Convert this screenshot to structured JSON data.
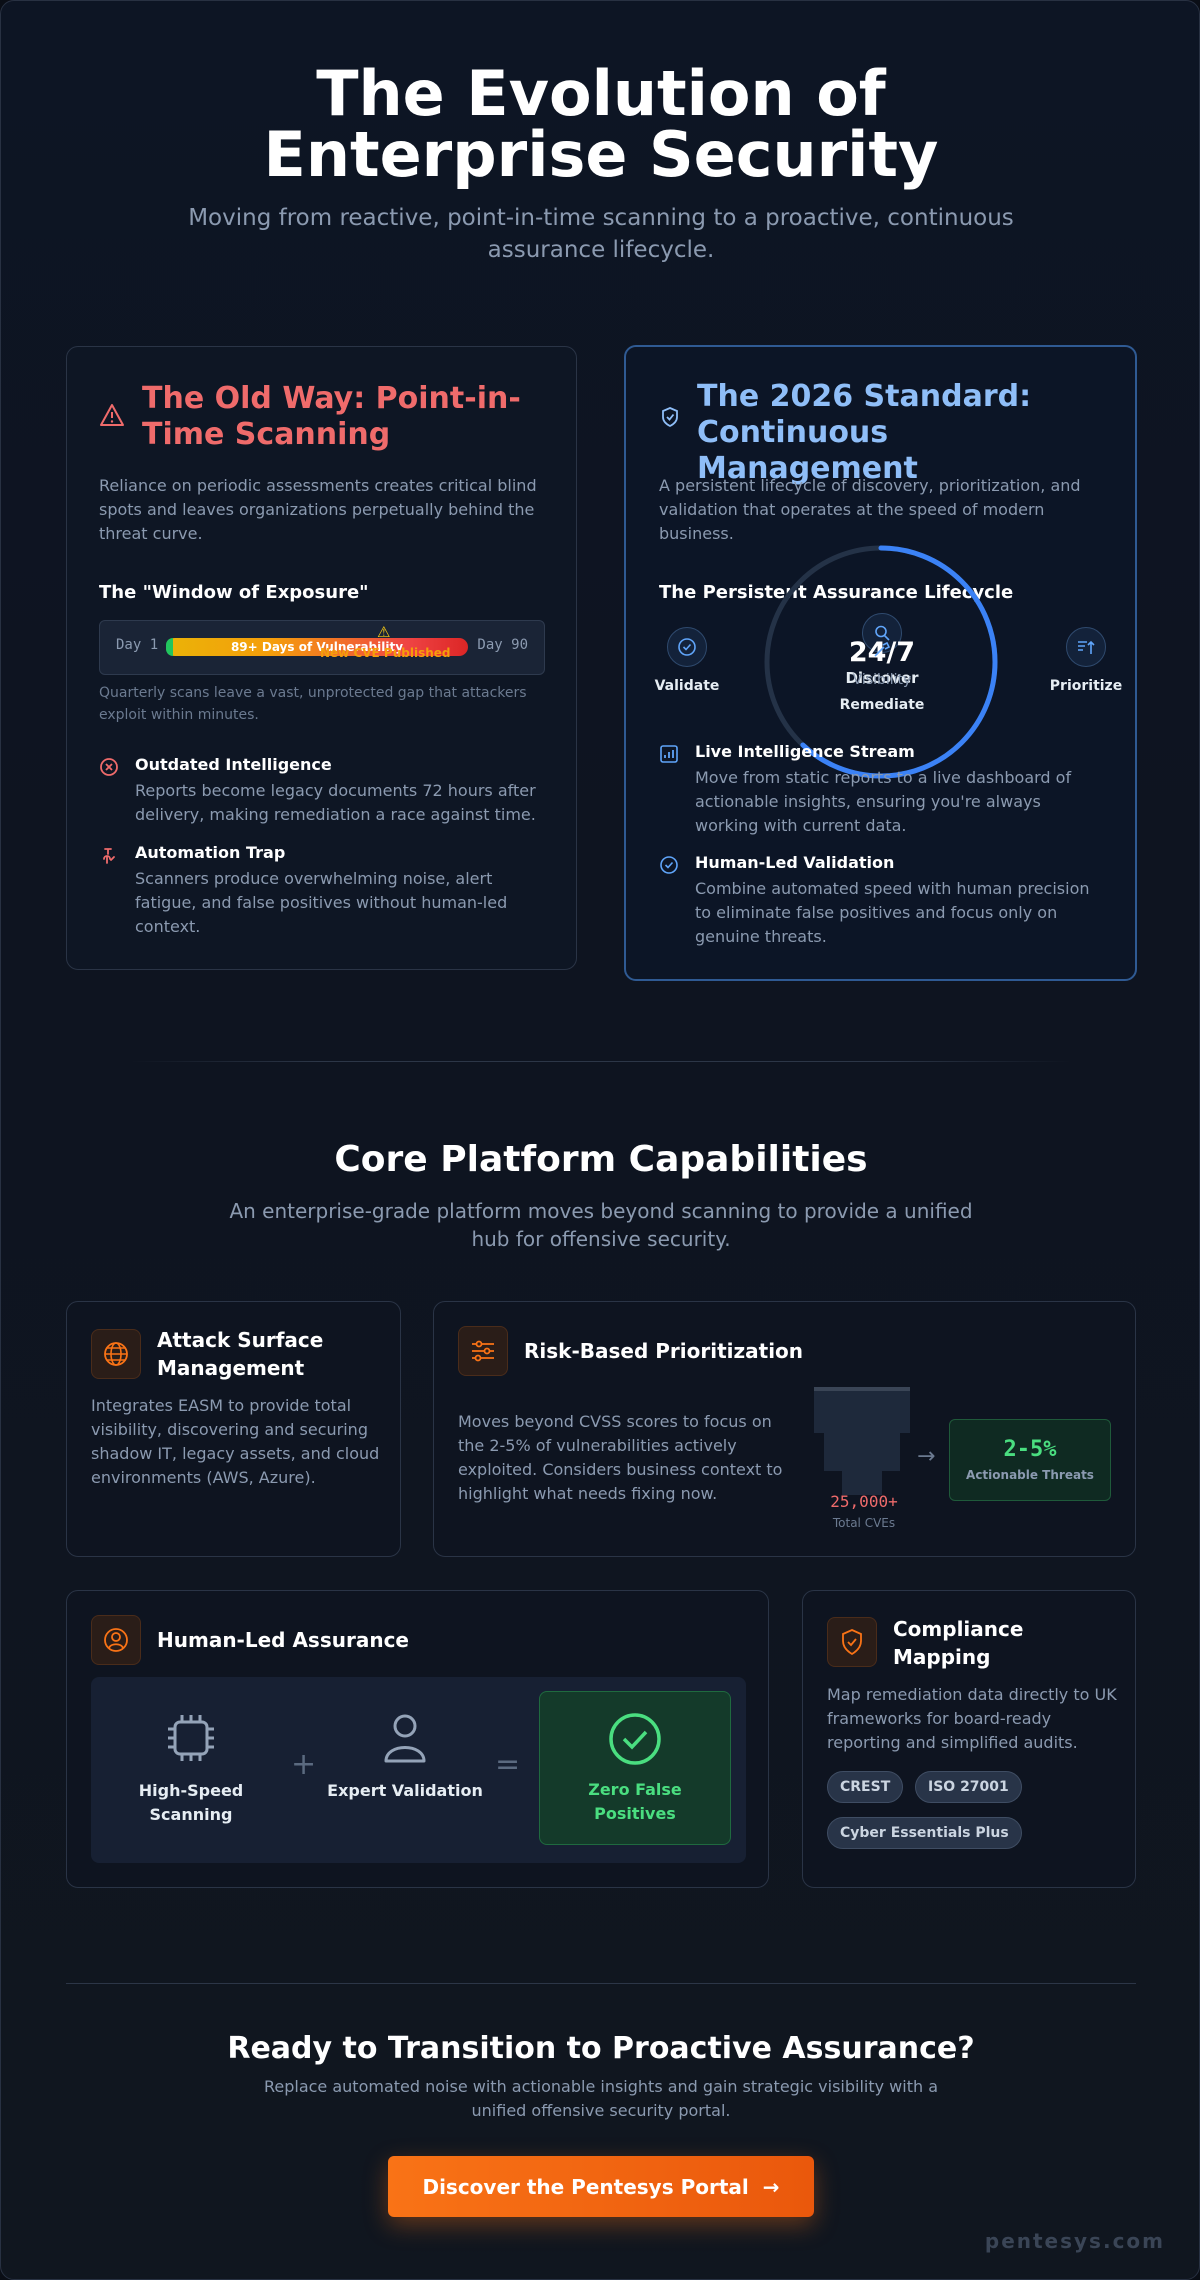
{
  "hero": {
    "title": "The Evolution of Enterprise Security",
    "subtitle": "Moving from reactive, point-in-time scanning to a proactive, continuous assurance lifecycle."
  },
  "old_way": {
    "title": "The Old Way: Point-in-Time Scanning",
    "description": "Reliance on periodic assessments creates critical blind spots and leaves organizations perpetually behind the threat curve.",
    "window_title": "The \"Window of Exposure\"",
    "day_start": "Day 1",
    "day_end": "Day 90",
    "bar_label": "89+ Days of Vulnerability",
    "cve_label": "New CVE Published",
    "note": "Quarterly scans leave a vast, unprotected gap that attackers exploit within minutes.",
    "items": [
      {
        "title": "Outdated Intelligence",
        "text": "Reports become legacy documents 72 hours after delivery, making remediation a race against time."
      },
      {
        "title": "Automation Trap",
        "text": "Scanners produce overwhelming noise, alert fatigue, and false positives without human-led context."
      }
    ]
  },
  "new_way": {
    "title": "The 2026 Standard: Continuous Management",
    "description": "A persistent lifecycle of discovery, prioritization, and validation that operates at the speed of modern business.",
    "lifecycle_title": "The Persistent Assurance Lifecycle",
    "ring_value": "24/7",
    "ring_label": "Visibility",
    "ring_progress": 0.62,
    "nodes": {
      "discover": "Discover",
      "validate": "Validate",
      "prioritize": "Prioritize",
      "remediate": "Remediate"
    },
    "items": [
      {
        "title": "Live Intelligence Stream",
        "text": "Move from static reports to a live dashboard of actionable insights, ensuring you're always working with current data."
      },
      {
        "title": "Human-Led Validation",
        "text": "Combine automated speed with human precision to eliminate false positives and focus only on genuine threats."
      }
    ]
  },
  "capabilities": {
    "title": "Core Platform Capabilities",
    "subtitle": "An enterprise-grade platform moves beyond scanning to provide a unified hub for offensive security.",
    "asm": {
      "title": "Attack Surface Management",
      "text": "Integrates EASM to provide total visibility, discovering and securing shadow IT, legacy assets, and cloud environments (AWS, Azure)."
    },
    "risk": {
      "title": "Risk-Based Prioritization",
      "text": "Moves beyond CVSS scores to focus on the 2-5% of vulnerabilities actively exploited. Considers business context to highlight what needs fixing now.",
      "total_value": "25,000+",
      "total_label": "Total CVEs",
      "arrow": "→",
      "threat_value": "2-5%",
      "threat_label": "Actionable Threats"
    },
    "human": {
      "title": "Human-Led Assurance",
      "a": "High-Speed Scanning",
      "b": "Expert Validation",
      "c": "Zero False Positives",
      "plus": "+",
      "equals": "="
    },
    "compliance": {
      "title": "Compliance Mapping",
      "text": "Map remediation data directly to UK frameworks for board-ready reporting and simplified audits.",
      "chips": [
        "CREST",
        "ISO 27001",
        "Cyber Essentials Plus"
      ]
    }
  },
  "cta": {
    "title": "Ready to Transition to Proactive Assurance?",
    "text": "Replace automated noise with actionable insights and gain strategic visibility with a unified offensive security portal.",
    "button": "Discover the Pentesys Portal",
    "button_arrow": "→"
  },
  "brand": "pentesys.com",
  "colors": {
    "old_accent": "#ef6b6b",
    "new_accent": "#8fbef8",
    "ring": "#3b82f6",
    "orange": "#f97316",
    "green": "#4ade80"
  }
}
